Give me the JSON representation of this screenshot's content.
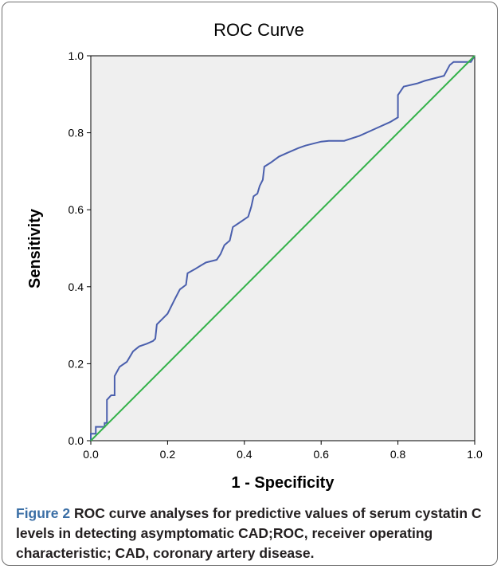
{
  "chart_data": {
    "type": "line",
    "title": "ROC Curve",
    "xlabel": "1 - Specificity",
    "ylabel": "Sensitivity",
    "xlim": [
      0.0,
      1.0
    ],
    "ylim": [
      0.0,
      1.0
    ],
    "x_ticks": [
      "0.0",
      "0.2",
      "0.4",
      "0.6",
      "0.8",
      "1.0"
    ],
    "y_ticks": [
      "0.0",
      "0.2",
      "0.4",
      "0.6",
      "0.8",
      "1.0"
    ],
    "grid": false,
    "legend": "none",
    "series": [
      {
        "color": "#4a5fad",
        "points": [
          [
            0.0,
            0.0
          ],
          [
            0.0,
            0.018
          ],
          [
            0.013,
            0.018
          ],
          [
            0.013,
            0.036
          ],
          [
            0.036,
            0.036
          ],
          [
            0.036,
            0.046
          ],
          [
            0.042,
            0.046
          ],
          [
            0.042,
            0.106
          ],
          [
            0.053,
            0.118
          ],
          [
            0.062,
            0.118
          ],
          [
            0.062,
            0.168
          ],
          [
            0.075,
            0.192
          ],
          [
            0.094,
            0.205
          ],
          [
            0.11,
            0.232
          ],
          [
            0.126,
            0.245
          ],
          [
            0.146,
            0.252
          ],
          [
            0.162,
            0.259
          ],
          [
            0.168,
            0.265
          ],
          [
            0.172,
            0.302
          ],
          [
            0.188,
            0.318
          ],
          [
            0.2,
            0.33
          ],
          [
            0.22,
            0.37
          ],
          [
            0.232,
            0.393
          ],
          [
            0.248,
            0.405
          ],
          [
            0.252,
            0.435
          ],
          [
            0.27,
            0.445
          ],
          [
            0.288,
            0.456
          ],
          [
            0.3,
            0.463
          ],
          [
            0.328,
            0.47
          ],
          [
            0.338,
            0.485
          ],
          [
            0.348,
            0.508
          ],
          [
            0.362,
            0.52
          ],
          [
            0.37,
            0.555
          ],
          [
            0.385,
            0.565
          ],
          [
            0.41,
            0.582
          ],
          [
            0.418,
            0.608
          ],
          [
            0.424,
            0.635
          ],
          [
            0.434,
            0.642
          ],
          [
            0.44,
            0.662
          ],
          [
            0.448,
            0.678
          ],
          [
            0.452,
            0.712
          ],
          [
            0.468,
            0.722
          ],
          [
            0.49,
            0.738
          ],
          [
            0.51,
            0.747
          ],
          [
            0.54,
            0.76
          ],
          [
            0.56,
            0.767
          ],
          [
            0.6,
            0.777
          ],
          [
            0.62,
            0.779
          ],
          [
            0.66,
            0.779
          ],
          [
            0.7,
            0.792
          ],
          [
            0.74,
            0.81
          ],
          [
            0.78,
            0.828
          ],
          [
            0.8,
            0.84
          ],
          [
            0.8,
            0.898
          ],
          [
            0.815,
            0.92
          ],
          [
            0.85,
            0.928
          ],
          [
            0.87,
            0.935
          ],
          [
            0.92,
            0.948
          ],
          [
            0.935,
            0.976
          ],
          [
            0.945,
            0.984
          ],
          [
            0.99,
            0.984
          ],
          [
            1.0,
            1.0
          ]
        ]
      },
      {
        "color": "#34b24a",
        "points": [
          [
            0.0,
            0.0
          ],
          [
            1.0,
            1.0
          ]
        ]
      }
    ]
  },
  "caption": {
    "label": "Figure 2",
    "text": " ROC curve analyses for predictive values of serum cystatin C levels in detecting asymptomatic CAD;ROC, receiver operating characteristic; CAD, coronary artery disease."
  }
}
